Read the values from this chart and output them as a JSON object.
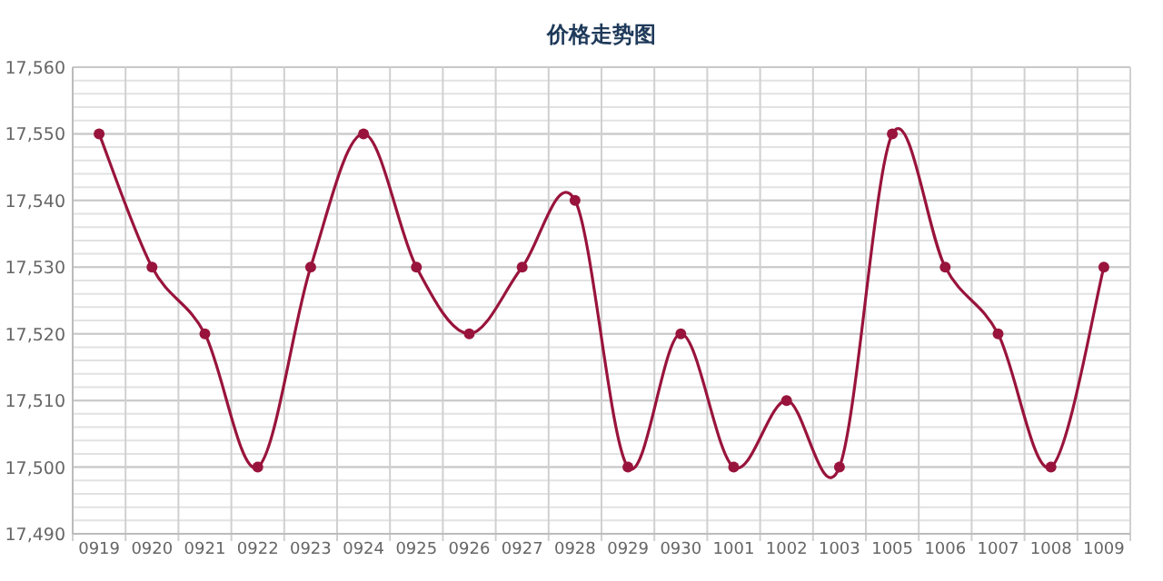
{
  "chart_data": {
    "type": "line",
    "title": "价格走势图",
    "categories": [
      "0919",
      "0920",
      "0921",
      "0922",
      "0923",
      "0924",
      "0925",
      "0926",
      "0927",
      "0928",
      "0929",
      "0930",
      "1001",
      "1002",
      "1003",
      "1005",
      "1006",
      "1007",
      "1008",
      "1009"
    ],
    "series": [
      {
        "color": "#99143c",
        "values": [
          17550,
          17530,
          17520,
          17500,
          17530,
          17550,
          17530,
          17520,
          17530,
          17540,
          17500,
          17520,
          17500,
          17510,
          17500,
          17550,
          17530,
          17520,
          17500,
          17530
        ]
      }
    ],
    "ylim": [
      17490,
      17560
    ],
    "yticks": [
      {
        "value": 17490,
        "label": "17,490"
      },
      {
        "value": 17500,
        "label": "17,500"
      },
      {
        "value": 17510,
        "label": "17,510"
      },
      {
        "value": 17520,
        "label": "17,520"
      },
      {
        "value": 17530,
        "label": "17,530"
      },
      {
        "value": 17540,
        "label": "17,540"
      },
      {
        "value": 17550,
        "label": "17,550"
      },
      {
        "value": 17560,
        "label": "17,560"
      }
    ],
    "grid": true,
    "marker": "circle",
    "line_style": "solid"
  }
}
